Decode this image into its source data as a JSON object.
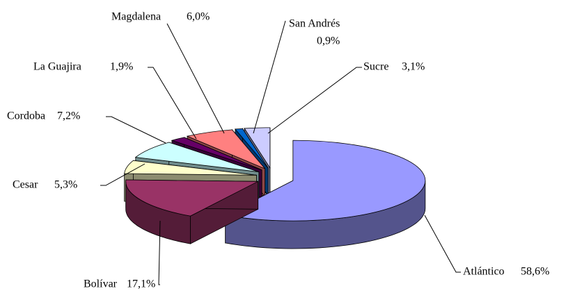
{
  "chart_data": {
    "type": "pie",
    "categories": [
      "Atlántico",
      "Bolívar",
      "Cesar",
      "Cordoba",
      "La Guajira",
      "Magdalena",
      "San Andrés",
      "Sucre"
    ],
    "values": [
      58.6,
      17.1,
      5.3,
      7.2,
      1.9,
      6.0,
      0.9,
      3.1
    ],
    "value_labels": [
      "58,6%",
      "17,1%",
      "5,3%",
      "7,2%",
      "1,9%",
      "6,0%",
      "0,9%",
      "3,1%"
    ],
    "colors": [
      "#9999ff",
      "#993366",
      "#ffffcc",
      "#ccffff",
      "#660066",
      "#ff8080",
      "#0066cc",
      "#ccccff"
    ]
  }
}
